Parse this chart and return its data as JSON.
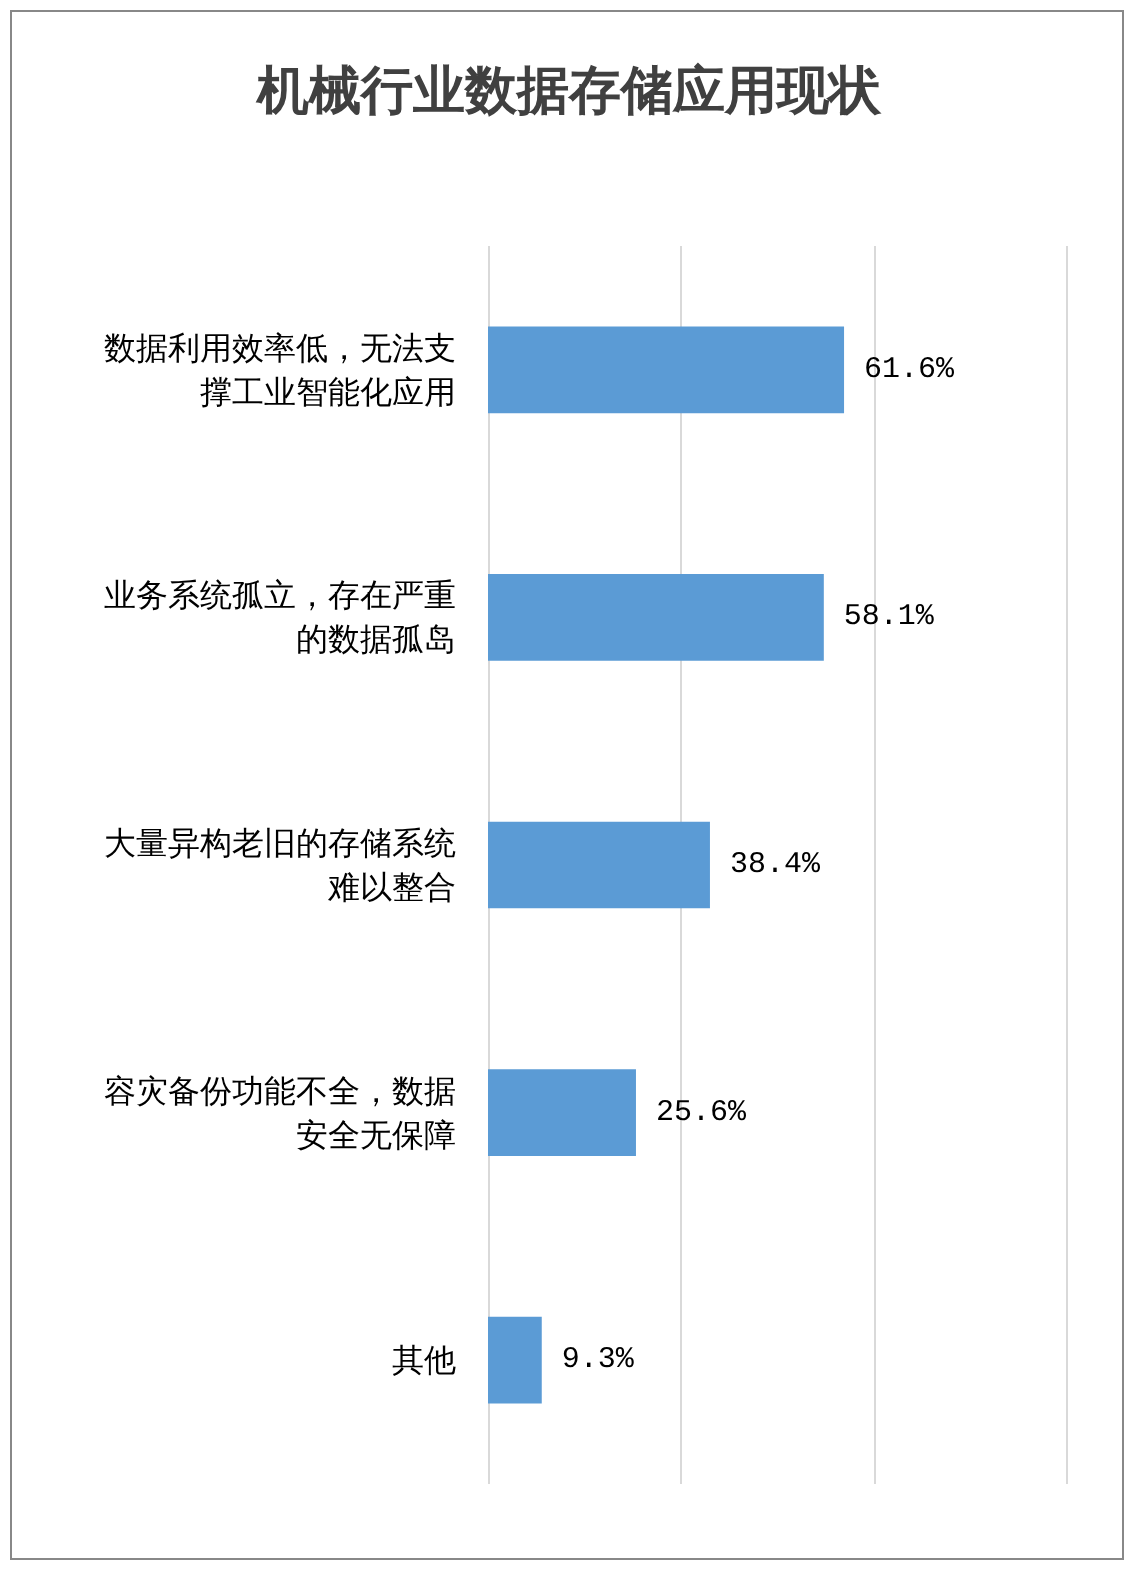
{
  "chart_data": {
    "type": "bar",
    "orientation": "horizontal",
    "title": "机械行业数据存储应用现状",
    "categories": [
      "数据利用效率低，无法支撑工业智能化应用",
      "业务系统孤立，存在严重的数据孤岛",
      "大量异构老旧的存储系统难以整合",
      "容灾备份功能不全，数据安全无保障",
      "其他"
    ],
    "values": [
      61.6,
      58.1,
      38.4,
      25.6,
      9.3
    ],
    "value_labels": [
      "61.6%",
      "58.1%",
      "38.4%",
      "25.6%",
      "9.3%"
    ],
    "color": "#5b9bd5",
    "xlim": [
      0,
      100
    ],
    "xticks": [
      {
        "value": 0,
        "label": null
      },
      {
        "value": 33.3,
        "label": null
      },
      {
        "value": 66.7,
        "label": null
      },
      {
        "value": 100,
        "label": null
      }
    ],
    "tick_labels": "y",
    "grid": "x"
  }
}
